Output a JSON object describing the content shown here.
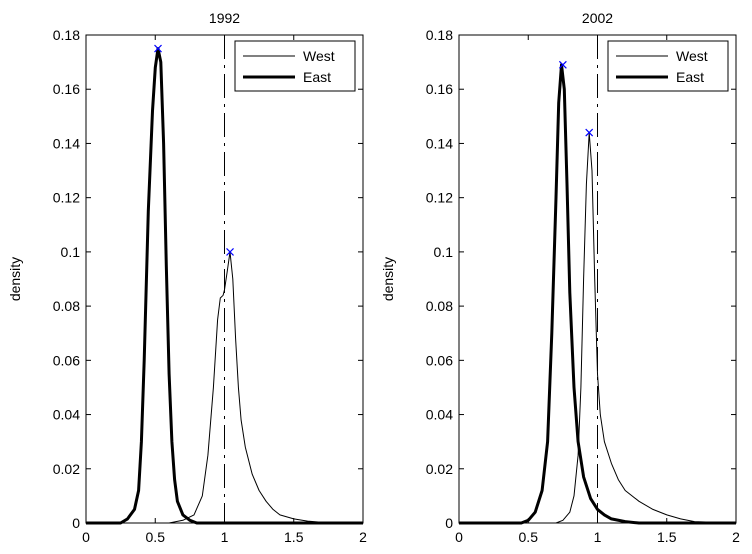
{
  "chart_data": [
    {
      "type": "line",
      "title": "1992",
      "xlabel": "",
      "ylabel": "density",
      "xlim": [
        0,
        2
      ],
      "ylim": [
        0,
        0.18
      ],
      "xticks": [
        "0",
        "0.5",
        "1",
        "1.5",
        "2"
      ],
      "yticks": [
        "0",
        "0.02",
        "0.04",
        "0.06",
        "0.08",
        "0.1",
        "0.12",
        "0.14",
        "0.16",
        "0.18"
      ],
      "grid": false,
      "legend_position": "top-right",
      "reference_line_x": 1,
      "series": [
        {
          "name": "West",
          "style": "thin",
          "x": [
            0,
            0.6,
            0.7,
            0.78,
            0.84,
            0.88,
            0.92,
            0.95,
            0.97,
            0.99,
            1.0,
            1.02,
            1.04,
            1.06,
            1.08,
            1.1,
            1.12,
            1.15,
            1.2,
            1.25,
            1.3,
            1.35,
            1.4,
            1.5,
            1.6,
            1.7,
            2.0
          ],
          "y": [
            0,
            0,
            0.001,
            0.003,
            0.01,
            0.025,
            0.05,
            0.075,
            0.083,
            0.084,
            0.086,
            0.093,
            0.1,
            0.09,
            0.068,
            0.05,
            0.038,
            0.028,
            0.018,
            0.012,
            0.008,
            0.005,
            0.003,
            0.0015,
            0.0007,
            0.0003,
            0
          ],
          "peak": {
            "x": 1.04,
            "y": 0.1
          }
        },
        {
          "name": "East",
          "style": "thick",
          "x": [
            0,
            0.25,
            0.3,
            0.35,
            0.38,
            0.4,
            0.42,
            0.45,
            0.48,
            0.5,
            0.52,
            0.54,
            0.56,
            0.58,
            0.6,
            0.62,
            0.64,
            0.66,
            0.7,
            0.75,
            0.8,
            2.0
          ],
          "y": [
            0,
            0,
            0.0015,
            0.005,
            0.012,
            0.03,
            0.06,
            0.115,
            0.152,
            0.168,
            0.175,
            0.17,
            0.14,
            0.095,
            0.055,
            0.03,
            0.016,
            0.008,
            0.003,
            0.001,
            0,
            0
          ],
          "peak": {
            "x": 0.52,
            "y": 0.175
          }
        }
      ]
    },
    {
      "type": "line",
      "title": "2002",
      "xlabel": "",
      "ylabel": "density",
      "xlim": [
        0,
        2
      ],
      "ylim": [
        0,
        0.18
      ],
      "xticks": [
        "0",
        "0.5",
        "1",
        "1.5",
        "2"
      ],
      "yticks": [
        "0",
        "0.02",
        "0.04",
        "0.06",
        "0.08",
        "0.1",
        "0.12",
        "0.14",
        "0.16",
        "0.18"
      ],
      "grid": false,
      "legend_position": "top-right",
      "reference_line_x": 1,
      "series": [
        {
          "name": "West",
          "style": "thin",
          "x": [
            0,
            0.7,
            0.75,
            0.8,
            0.83,
            0.86,
            0.88,
            0.9,
            0.92,
            0.94,
            0.96,
            0.98,
            1.0,
            1.02,
            1.05,
            1.1,
            1.15,
            1.2,
            1.3,
            1.4,
            1.5,
            1.6,
            1.7,
            2.0
          ],
          "y": [
            0,
            0,
            0.001,
            0.004,
            0.01,
            0.025,
            0.05,
            0.09,
            0.125,
            0.144,
            0.13,
            0.09,
            0.055,
            0.04,
            0.03,
            0.022,
            0.016,
            0.012,
            0.008,
            0.005,
            0.003,
            0.0015,
            0.0005,
            0
          ],
          "peak": {
            "x": 0.94,
            "y": 0.144
          }
        },
        {
          "name": "East",
          "style": "thick",
          "x": [
            0,
            0.45,
            0.5,
            0.55,
            0.6,
            0.64,
            0.67,
            0.7,
            0.72,
            0.74,
            0.76,
            0.78,
            0.8,
            0.83,
            0.86,
            0.9,
            0.95,
            1.0,
            1.05,
            1.1,
            1.2,
            1.3,
            2.0
          ],
          "y": [
            0,
            0,
            0.001,
            0.004,
            0.012,
            0.03,
            0.07,
            0.12,
            0.155,
            0.169,
            0.16,
            0.125,
            0.085,
            0.05,
            0.03,
            0.017,
            0.009,
            0.005,
            0.003,
            0.0015,
            0.0005,
            0,
            0
          ],
          "peak": {
            "x": 0.75,
            "y": 0.169
          }
        }
      ]
    }
  ]
}
